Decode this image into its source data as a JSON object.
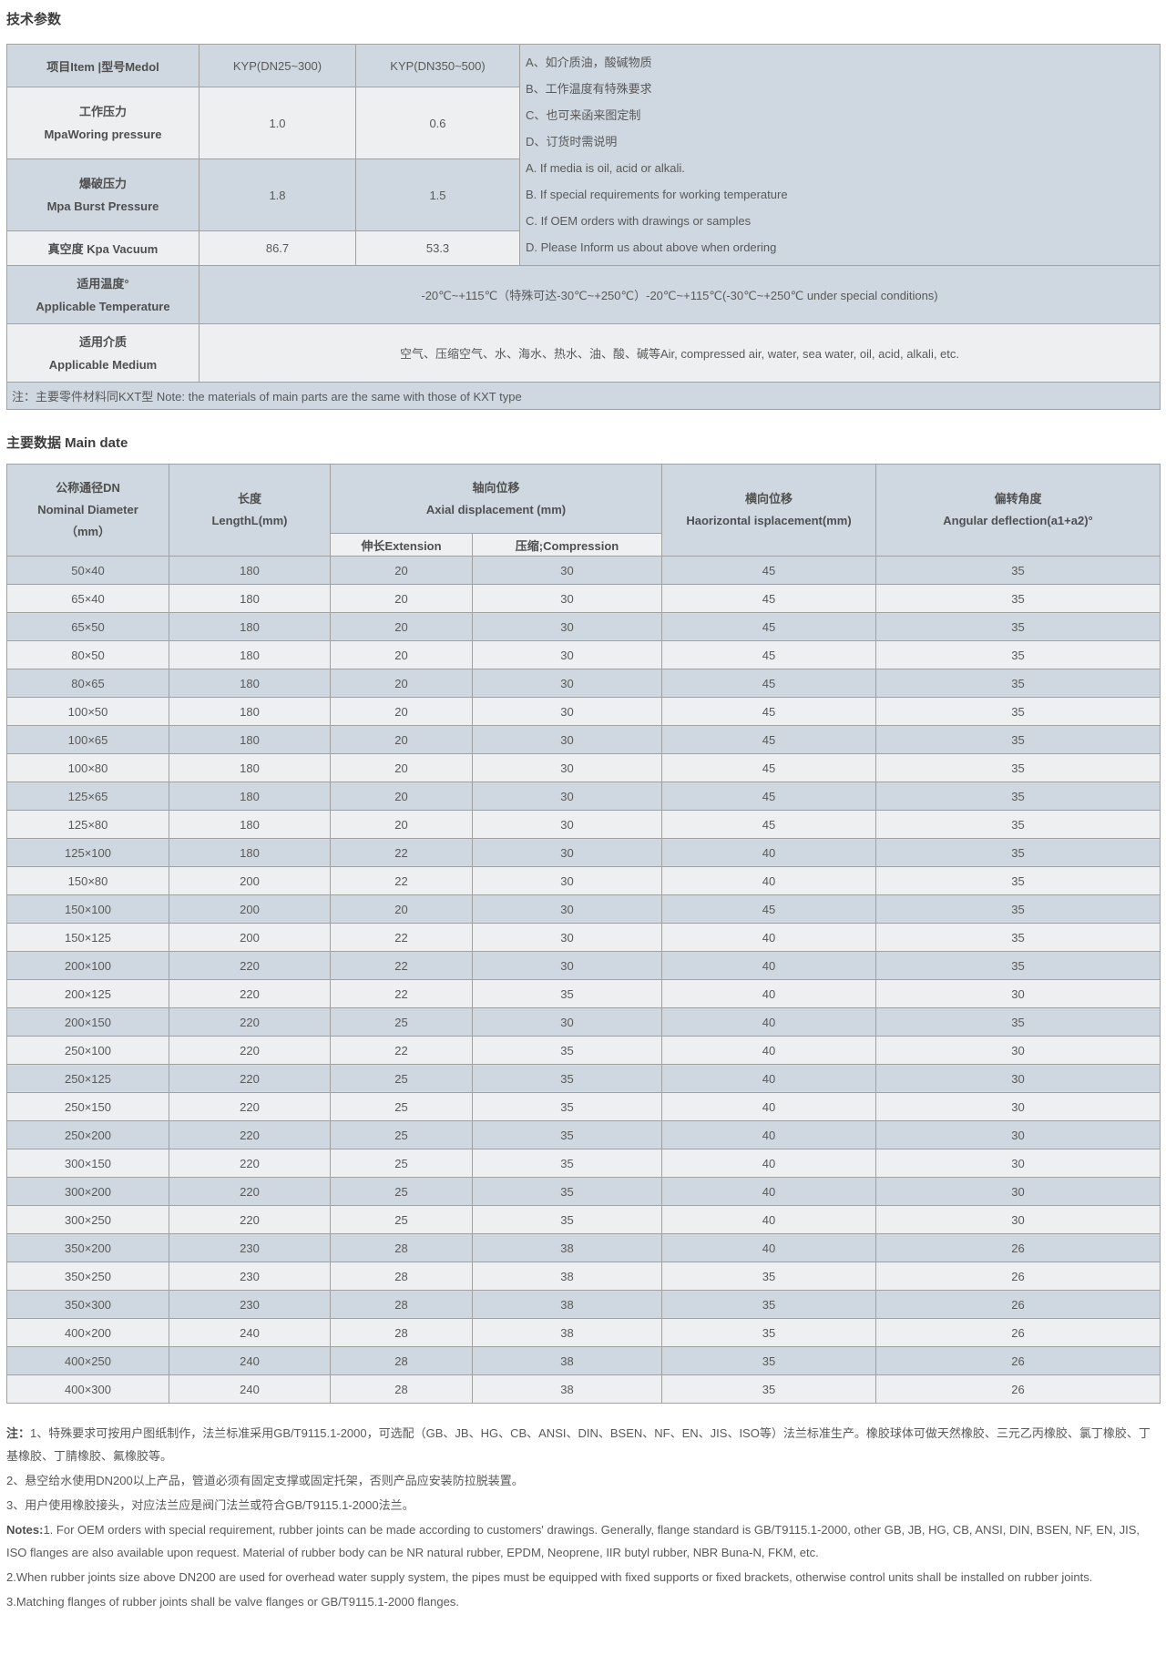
{
  "page": {
    "title_tech": "技术参数",
    "title_main": "主要数据 Main date"
  },
  "tech_table": {
    "header": {
      "item": "项目Item |型号Medol",
      "model1": "KYP(DN25~300)",
      "model2": "KYP(DN350~500)"
    },
    "rows": [
      {
        "label_cn": "工作压力",
        "label_en": "MpaWoring pressure",
        "v1": "1.0",
        "v2": "0.6"
      },
      {
        "label_cn": "爆破压力",
        "label_en": "Mpa Burst Pressure",
        "v1": "1.8",
        "v2": "1.5"
      },
      {
        "label": "真空度 Kpa Vacuum",
        "v1": "86.7",
        "v2": "53.3"
      }
    ],
    "temperature": {
      "label_cn": "适用温度°",
      "label_en": "Applicable Temperature",
      "value": "-20℃~+115℃（特殊可达-30℃~+250℃）-20℃~+115℃(-30℃~+250℃ under special conditions)"
    },
    "medium": {
      "label_cn": "适用介质",
      "label_en": "Applicable Medium",
      "value": "空气、压缩空气、水、海水、热水、油、酸、碱等Air, compressed air, water, sea water, oil, acid, alkali, etc."
    },
    "remarks": [
      "A、如介质油，酸碱物质",
      "B、工作温度有特殊要求",
      "C、也可来函来图定制",
      "D、订货时需说明",
      "A. If media is oil, acid or alkali.",
      "B. If special requirements for working temperature",
      "C. If OEM orders with drawings or samples",
      "D. Please Inform us about above when ordering"
    ],
    "note": "注：主要零件材料同KXT型 Note: the materials of main parts are the same with those of KXT type"
  },
  "main_table": {
    "headers": {
      "dn_cn": "公称通径DN",
      "dn_en": "Nominal Diameter",
      "dn_unit": "（mm）",
      "length_cn": "长度",
      "length_en": "LengthL(mm)",
      "axial_cn": "轴向位移",
      "axial_en": "Axial displacement (mm)",
      "extension": "伸长Extension",
      "compression": "压缩;Compression",
      "horizontal_cn": "横向位移",
      "horizontal_en": "Haorizontal isplacement(mm)",
      "angular_cn": "偏转角度",
      "angular_en": "Angular deflection(a1+a2)°"
    },
    "rows": [
      [
        "50×40",
        "180",
        "20",
        "30",
        "45",
        "35"
      ],
      [
        "65×40",
        "180",
        "20",
        "30",
        "45",
        "35"
      ],
      [
        "65×50",
        "180",
        "20",
        "30",
        "45",
        "35"
      ],
      [
        "80×50",
        "180",
        "20",
        "30",
        "45",
        "35"
      ],
      [
        "80×65",
        "180",
        "20",
        "30",
        "45",
        "35"
      ],
      [
        "100×50",
        "180",
        "20",
        "30",
        "45",
        "35"
      ],
      [
        "100×65",
        "180",
        "20",
        "30",
        "45",
        "35"
      ],
      [
        "100×80",
        "180",
        "20",
        "30",
        "45",
        "35"
      ],
      [
        "125×65",
        "180",
        "20",
        "30",
        "45",
        "35"
      ],
      [
        "125×80",
        "180",
        "20",
        "30",
        "45",
        "35"
      ],
      [
        "125×100",
        "180",
        "22",
        "30",
        "40",
        "35"
      ],
      [
        "150×80",
        "200",
        "22",
        "30",
        "40",
        "35"
      ],
      [
        "150×100",
        "200",
        "20",
        "30",
        "45",
        "35"
      ],
      [
        "150×125",
        "200",
        "22",
        "30",
        "40",
        "35"
      ],
      [
        "200×100",
        "220",
        "22",
        "30",
        "40",
        "35"
      ],
      [
        "200×125",
        "220",
        "22",
        "35",
        "40",
        "30"
      ],
      [
        "200×150",
        "220",
        "25",
        "30",
        "40",
        "35"
      ],
      [
        "250×100",
        "220",
        "22",
        "35",
        "40",
        "30"
      ],
      [
        "250×125",
        "220",
        "25",
        "35",
        "40",
        "30"
      ],
      [
        "250×150",
        "220",
        "25",
        "35",
        "40",
        "30"
      ],
      [
        "250×200",
        "220",
        "25",
        "35",
        "40",
        "30"
      ],
      [
        "300×150",
        "220",
        "25",
        "35",
        "40",
        "30"
      ],
      [
        "300×200",
        "220",
        "25",
        "35",
        "40",
        "30"
      ],
      [
        "300×250",
        "220",
        "25",
        "35",
        "40",
        "30"
      ],
      [
        "350×200",
        "230",
        "28",
        "38",
        "40",
        "26"
      ],
      [
        "350×250",
        "230",
        "28",
        "38",
        "35",
        "26"
      ],
      [
        "350×300",
        "230",
        "28",
        "38",
        "35",
        "26"
      ],
      [
        "400×200",
        "240",
        "28",
        "38",
        "35",
        "26"
      ],
      [
        "400×250",
        "240",
        "28",
        "38",
        "35",
        "26"
      ],
      [
        "400×300",
        "240",
        "28",
        "38",
        "35",
        "26"
      ]
    ]
  },
  "notes": {
    "cn": [
      {
        "prefix": "注：",
        "text": "1、特殊要求可按用户图纸制作，法兰标准采用GB/T9115.1-2000，可选配（GB、JB、HG、CB、ANSI、DIN、BSEN、NF、EN、JIS、ISO等）法兰标准生产。橡胶球体可做天然橡胶、三元乙丙橡胶、氯丁橡胶、丁基橡胶、丁腈橡胶、氟橡胶等。"
      },
      {
        "text": "2、悬空给水使用DN200以上产品，管道必须有固定支撑或固定托架，否则产品应安装防拉脱装置。"
      },
      {
        "text": "3、用户使用橡胶接头，对应法兰应是阀门法兰或符合GB/T9115.1-2000法兰。"
      }
    ],
    "en": [
      {
        "prefix": "Notes:",
        "text": "1. For OEM orders with special requirement, rubber joints can be made according to customers' drawings. Generally, flange standard is GB/T9115.1-2000, other GB, JB, HG, CB, ANSI, DIN, BSEN, NF, EN, JIS, ISO flanges are also available upon request. Material of rubber body can be NR natural rubber, EPDM, Neoprene, IIR butyl rubber, NBR Buna-N, FKM, etc."
      },
      {
        "text": "2.When rubber joints size above DN200 are used for overhead water supply system, the pipes must be equipped with fixed supports or fixed brackets, otherwise control units shall be installed on rubber joints."
      },
      {
        "text": "3.Matching flanges of rubber joints shall be valve flanges or GB/T9115.1-2000 flanges."
      }
    ]
  },
  "colors": {
    "row_blue": "#cfd8e0",
    "row_light": "#eeeff0",
    "border": "#a1a1a1"
  }
}
